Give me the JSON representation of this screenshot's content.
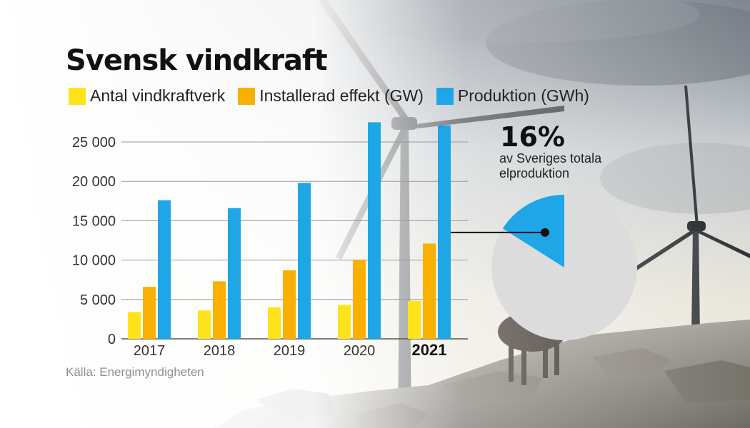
{
  "title": "Svensk vindkraft",
  "source": "Källa: Energimyndigheten",
  "callout": {
    "percent": "16%",
    "description": "av Sveriges totala elproduktion",
    "share": 0.16
  },
  "colors": {
    "antal": "#ffe31a",
    "effekt": "#f9b000",
    "produktion": "#1ea6e6"
  },
  "background_icons": [
    "wind-turbine-icon",
    "reindeer-icon",
    "rocks-icon",
    "sky-icon"
  ],
  "chart_data": {
    "type": "bar",
    "categories": [
      "2017",
      "2018",
      "2019",
      "2020",
      "2021"
    ],
    "highlight_category": "2021",
    "yticks": [
      "0",
      "5 000",
      "10 000",
      "15 000",
      "20 000",
      "25 000"
    ],
    "ytick_values": [
      0,
      5000,
      10000,
      15000,
      20000,
      25000
    ],
    "ylim": [
      0,
      28000
    ],
    "series": [
      {
        "name": "Antal vindkraftverk",
        "values": [
          3400,
          3600,
          4000,
          4300,
          4800
        ]
      },
      {
        "name": "Installerad effekt (GW)",
        "values": [
          6600,
          7300,
          8700,
          10000,
          12100
        ]
      },
      {
        "name": "Produktion (GWh)",
        "values": [
          17600,
          16600,
          19800,
          27500,
          27100
        ]
      }
    ],
    "grid": "horizontal",
    "legend": "top"
  }
}
